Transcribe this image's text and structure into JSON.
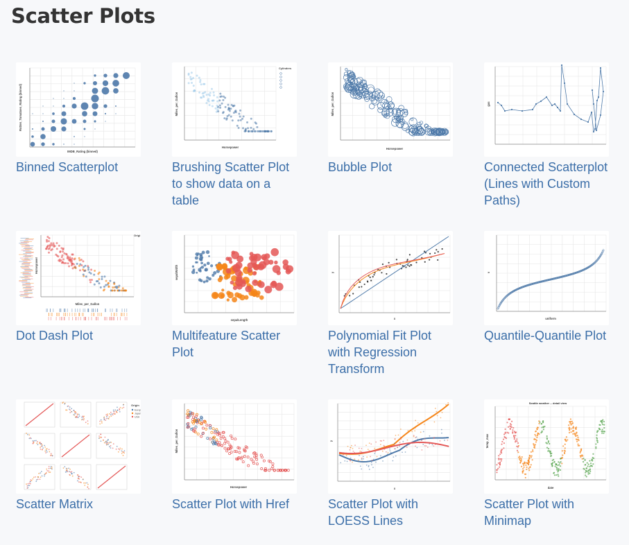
{
  "page": {
    "title": "Scatter Plots"
  },
  "gallery": [
    {
      "label": "Binned Scatterplot",
      "xlabel": "IMDB_Rating (binned)",
      "ylabel": "Rotten_Tomatoes_Rating (binned)"
    },
    {
      "label": "Brushing Scatter Plot to show data on a table",
      "xlabel": "Horsepower",
      "ylabel": "Miles_per_Gallon",
      "legend_title": "Cylinders"
    },
    {
      "label": "Bubble Plot",
      "xlabel": "Horsepower",
      "ylabel": "Miles_per_Gallon"
    },
    {
      "label": "Connected Scatterplot (Lines with Custom Paths)",
      "ylabel": "gas"
    },
    {
      "label": "Dot Dash Plot",
      "xlabel": "Miles_per_Gallon",
      "ylabel": "Horsepower",
      "legend_title": "Origi"
    },
    {
      "label": "Multifeature Scatter Plot",
      "xlabel": "sepalLength",
      "ylabel": "sepalWidth"
    },
    {
      "label": "Polynomial Fit Plot with Regression Transform",
      "xlabel": "x",
      "ylabel": "y"
    },
    {
      "label": "Quantile-Quantile Plot",
      "xlabel": "uniform",
      "ylabel": "v"
    },
    {
      "label": "Scatter Matrix",
      "legend_title": "Origin",
      "legend_items": [
        "Europe",
        "Japan",
        "USA"
      ]
    },
    {
      "label": "Scatter Plot with Href",
      "xlabel": "Horsepower",
      "ylabel": "Miles_per_Gallon"
    },
    {
      "label": "Scatter Plot with LOESS Lines",
      "xlabel": "x",
      "ylabel": "y"
    },
    {
      "label": "Scatter Plot with Minimap",
      "title": "Seattle weather -- detail view",
      "xlabel": "date",
      "ylabel": "temp_max"
    }
  ],
  "colors": {
    "link": "#3b6ea8",
    "blue": "#4c78a8",
    "orange": "#f58518",
    "red": "#e45756",
    "green": "#54a24b",
    "lightblue": "#9ecae9"
  }
}
